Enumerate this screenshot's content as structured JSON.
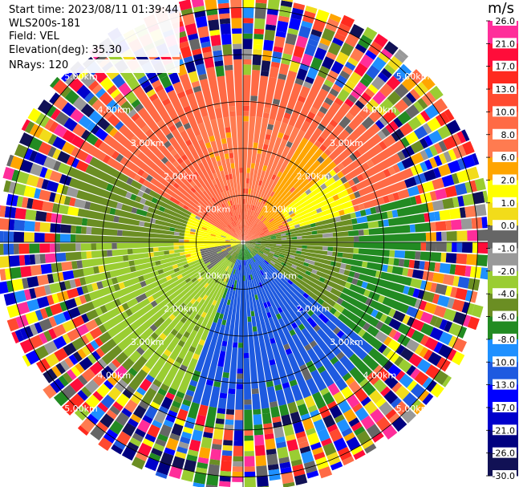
{
  "header": {
    "start_time": "Start time: 2023/08/11 01:39:44",
    "instrument": "WLS200s-181",
    "field": "Field: VEL",
    "elevation": "Elevation(deg): 35.30",
    "nrays": "NRays: 120"
  },
  "colorbar": {
    "unit": "m/s",
    "ticks": [
      "26.0",
      "21.0",
      "17.0",
      "13.0",
      "10.0",
      "8.0",
      "6.0",
      "2.0",
      "1.0",
      "0.0",
      "-1.0",
      "-2.0",
      "-4.0",
      "-6.0",
      "-8.0",
      "-10.0",
      "-13.0",
      "-17.0",
      "-21.0",
      "-26.0",
      "-30.0"
    ],
    "colors": [
      "#ff2e9a",
      "#ff0d3a",
      "#ff2a1f",
      "#ff4a30",
      "#ff6a45",
      "#ff7b50",
      "#ffa500",
      "#ffff00",
      "#f2dc1a",
      "#666666",
      "#999999",
      "#9acd32",
      "#6b8e23",
      "#228b22",
      "#1e90ff",
      "#1e5ae0",
      "#0000ff",
      "#0000cc",
      "#000080",
      "#111155"
    ]
  },
  "chart_data": {
    "type": "ppi",
    "field": "VEL",
    "units": "m/s",
    "rings_km": [
      1,
      2,
      3,
      4,
      5
    ],
    "ring_labels": [
      "1.00km",
      "2.00km",
      "3.00km",
      "4.00km",
      "5.00km"
    ],
    "max_range_km": 5.3,
    "nrays": 120,
    "pattern": [
      {
        "az_from": 300,
        "az_to": 340,
        "r_km": [
          0.8,
          2.6
        ],
        "velocity": 10.0
      },
      {
        "az_from": 340,
        "az_to": 30,
        "r_km": [
          0.8,
          2.6
        ],
        "velocity": 8.0
      },
      {
        "az_from": 30,
        "az_to": 70,
        "r_km": [
          0.6,
          2.5
        ],
        "velocity": 6.0
      },
      {
        "az_from": 50,
        "az_to": 75,
        "r_km": [
          1.0,
          2.4
        ],
        "velocity": 2.0
      },
      {
        "az_from": 75,
        "az_to": 140,
        "r_km": [
          0.0,
          2.3
        ],
        "velocity": -4.0
      },
      {
        "az_from": 130,
        "az_to": 200,
        "r_km": [
          0.3,
          3.5
        ],
        "velocity": -10.0
      },
      {
        "az_from": 200,
        "az_to": 270,
        "r_km": [
          0.4,
          3.4
        ],
        "velocity": -2.0
      },
      {
        "az_from": 250,
        "az_to": 300,
        "r_km": [
          0.0,
          1.2
        ],
        "velocity": 2.0
      },
      {
        "az_from": 230,
        "az_to": 260,
        "r_km": [
          0.2,
          0.9
        ],
        "velocity": 0.0
      }
    ],
    "noise_beyond_km": 3.7
  }
}
